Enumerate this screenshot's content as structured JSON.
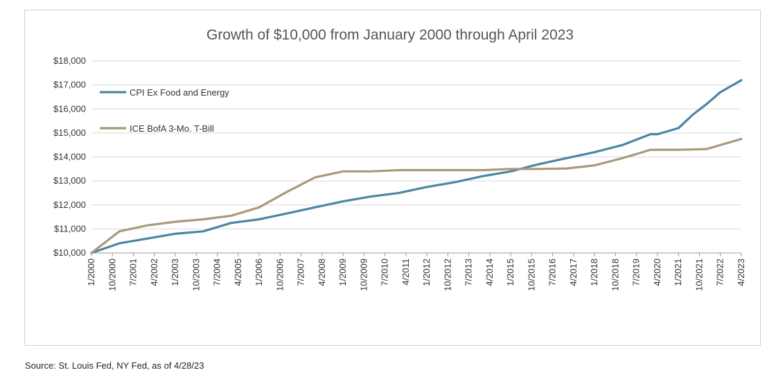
{
  "chart_data": {
    "type": "line",
    "title": "Growth of $10,000 from January 2000 through April 2023",
    "xlabel": "",
    "ylabel": "",
    "ylim": [
      10000,
      18000
    ],
    "yticks": [
      "$10,000",
      "$11,000",
      "$12,000",
      "$13,000",
      "$14,000",
      "$15,000",
      "$16,000",
      "$17,000",
      "$18,000"
    ],
    "xticks": [
      "1/2000",
      "10/2000",
      "7/2001",
      "4/2002",
      "1/2003",
      "10/2003",
      "7/2004",
      "4/2005",
      "1/2006",
      "10/2006",
      "7/2007",
      "4/2008",
      "1/2009",
      "10/2009",
      "7/2010",
      "4/2011",
      "1/2012",
      "10/2012",
      "7/2013",
      "4/2014",
      "1/2015",
      "10/2015",
      "7/2016",
      "4/2017",
      "1/2018",
      "10/2018",
      "7/2019",
      "4/2020",
      "1/2021",
      "10/2021",
      "7/2022",
      "4/2023"
    ],
    "grid": "horizontal",
    "legend": "top-left",
    "series": [
      {
        "name": "CPI Ex Food and Energy",
        "color": "#4a86a3",
        "x": [
          "1/2000",
          "1/2001",
          "1/2002",
          "1/2003",
          "1/2004",
          "1/2005",
          "1/2006",
          "1/2007",
          "1/2008",
          "1/2009",
          "1/2010",
          "1/2011",
          "1/2012",
          "1/2013",
          "1/2014",
          "1/2015",
          "1/2016",
          "1/2017",
          "1/2018",
          "1/2019",
          "1/2020",
          "4/2020",
          "1/2021",
          "7/2021",
          "1/2022",
          "7/2022",
          "4/2023"
        ],
        "y": [
          10000,
          10400,
          10600,
          10800,
          10900,
          11250,
          11400,
          11650,
          11900,
          12150,
          12350,
          12500,
          12750,
          12950,
          13200,
          13400,
          13700,
          13950,
          14200,
          14500,
          14950,
          14950,
          15200,
          15750,
          16200,
          16700,
          17200
        ]
      },
      {
        "name": "ICE BofA 3-Mo. T-Bill",
        "color": "#a89a7a",
        "x": [
          "1/2000",
          "1/2001",
          "1/2002",
          "1/2003",
          "1/2004",
          "1/2005",
          "1/2006",
          "1/2007",
          "1/2008",
          "1/2009",
          "1/2010",
          "1/2011",
          "1/2012",
          "1/2013",
          "1/2014",
          "1/2015",
          "1/2016",
          "1/2017",
          "1/2018",
          "1/2019",
          "1/2020",
          "1/2021",
          "1/2022",
          "4/2023"
        ],
        "y": [
          10000,
          10900,
          11150,
          11300,
          11400,
          11550,
          11900,
          12550,
          13150,
          13400,
          13400,
          13450,
          13450,
          13450,
          13450,
          13500,
          13500,
          13520,
          13650,
          13950,
          14300,
          14300,
          14330,
          14750
        ]
      }
    ]
  },
  "source": "Source: St. Louis Fed, NY Fed, as of 4/28/23"
}
